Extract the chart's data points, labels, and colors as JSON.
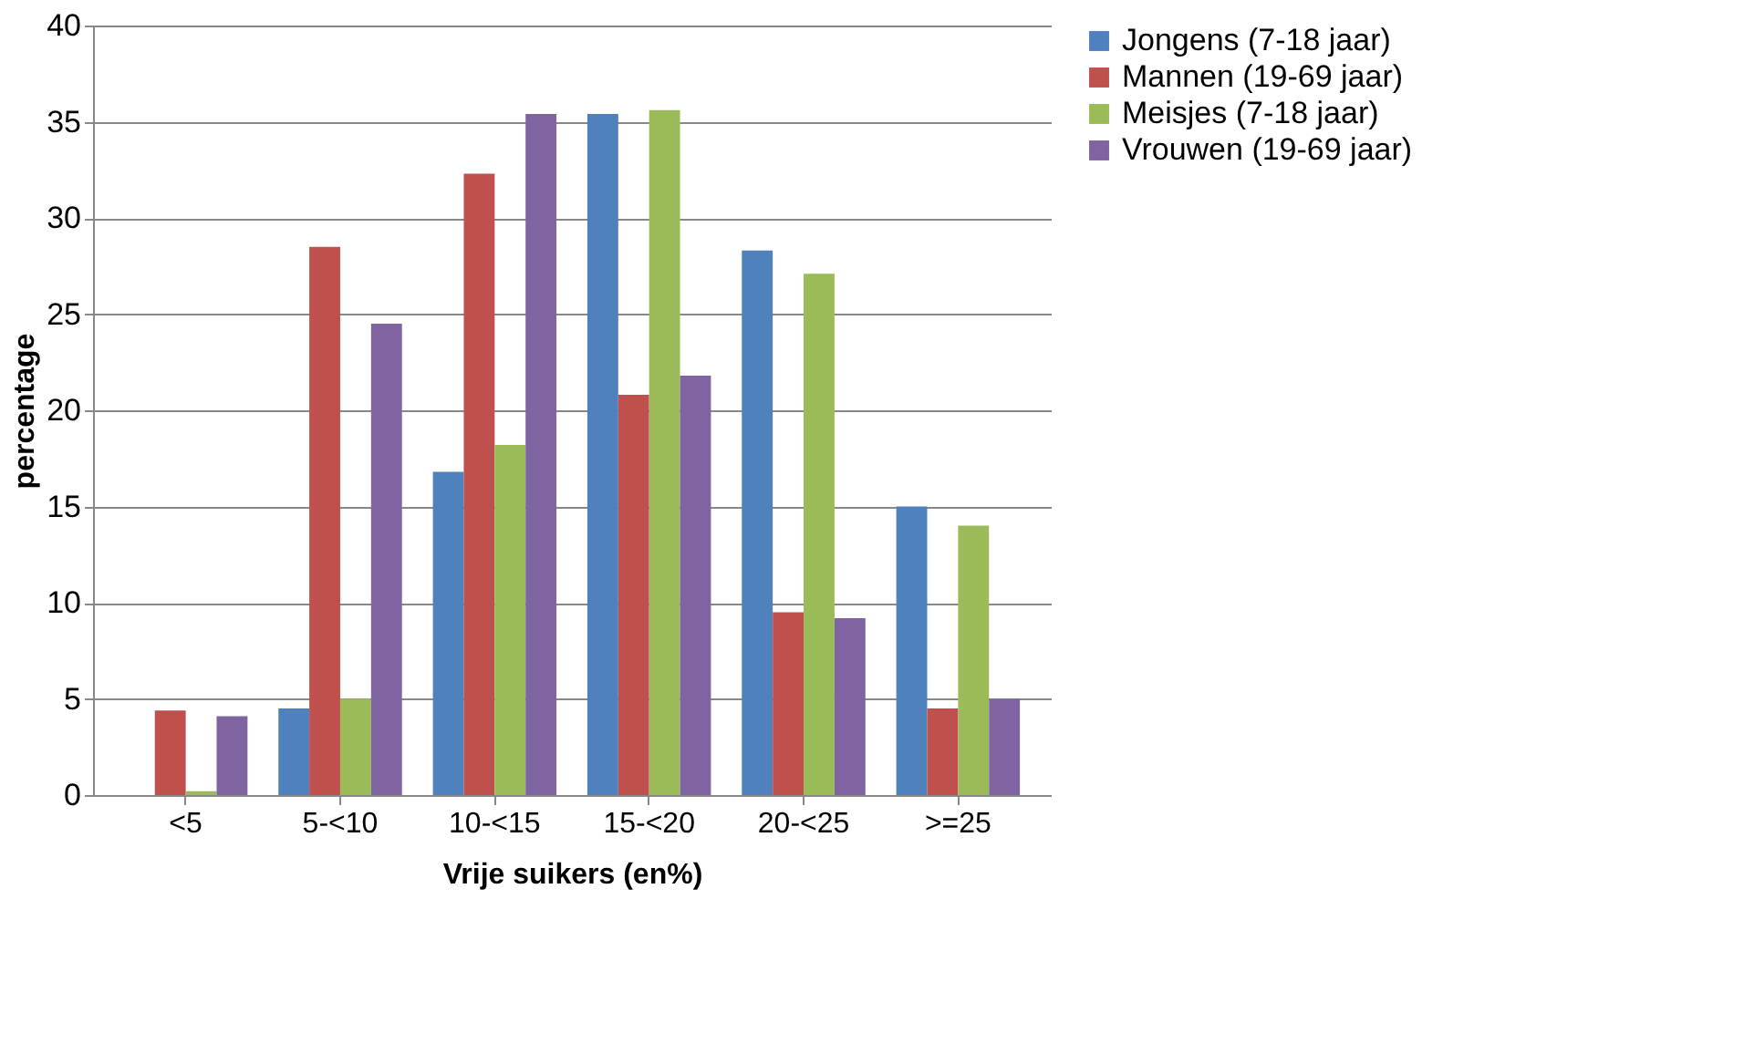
{
  "chart_data": {
    "type": "bar",
    "xlabel": "Vrije suikers (en%)",
    "ylabel": "percentage",
    "categories": [
      "<5",
      "5-<10",
      "10-<15",
      "15-<20",
      "20-<25",
      ">=25"
    ],
    "series": [
      {
        "name": "Jongens (7-18 jaar)",
        "color": "#4f81bd",
        "values": [
          0,
          4.5,
          16.8,
          35.4,
          28.3,
          15.0
        ]
      },
      {
        "name": "Mannen (19-69 jaar)",
        "color": "#c0504d",
        "values": [
          4.4,
          28.5,
          32.3,
          20.8,
          9.5,
          4.5
        ]
      },
      {
        "name": "Meisjes (7-18 jaar)",
        "color": "#9bbb59",
        "values": [
          0.2,
          5.0,
          18.2,
          35.6,
          27.1,
          14.0
        ]
      },
      {
        "name": "Vrouwen (19-69 jaar)",
        "color": "#8064a2",
        "values": [
          4.1,
          24.5,
          35.4,
          21.8,
          9.2,
          5.0
        ]
      }
    ],
    "ylim": [
      0,
      40
    ],
    "yticks": [
      0,
      5,
      10,
      15,
      20,
      25,
      30,
      35,
      40
    ],
    "grid": "y",
    "legend": "right"
  }
}
